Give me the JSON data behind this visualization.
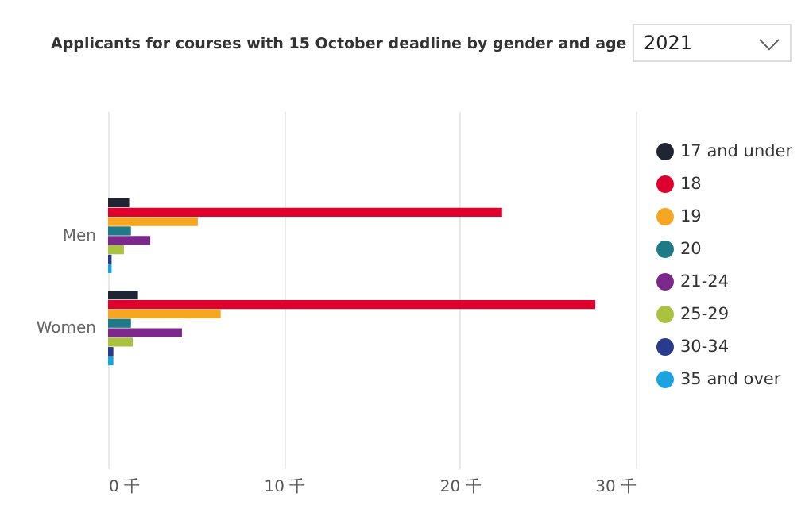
{
  "chart_data": {
    "type": "bar",
    "orientation": "horizontal",
    "title": "Applicants for courses with 15 October deadline by gender and age",
    "annotations": [
      "2021"
    ],
    "categories": [
      "Men",
      "Women"
    ],
    "series": [
      {
        "name": "17 and under",
        "color": "#1f2532",
        "values": [
          1.2,
          1.7
        ]
      },
      {
        "name": "18",
        "color": "#e0002d",
        "values": [
          22.4,
          27.7
        ]
      },
      {
        "name": "19",
        "color": "#f5a623",
        "values": [
          5.1,
          6.4
        ]
      },
      {
        "name": "20",
        "color": "#1e7a86",
        "values": [
          1.3,
          1.3
        ]
      },
      {
        "name": "21-24",
        "color": "#7b2a8c",
        "values": [
          2.4,
          4.2
        ]
      },
      {
        "name": "25-29",
        "color": "#a9c23f",
        "values": [
          0.9,
          1.4
        ]
      },
      {
        "name": "30-34",
        "color": "#2a3a8c",
        "values": [
          0.2,
          0.3
        ]
      },
      {
        "name": "35 and over",
        "color": "#1aa3e0",
        "values": [
          0.2,
          0.3
        ]
      }
    ],
    "xlim": [
      0,
      30
    ],
    "xticks": [
      {
        "value": 0,
        "label": "0 千"
      },
      {
        "value": 10,
        "label": "10 千"
      },
      {
        "value": 20,
        "label": "20 千"
      },
      {
        "value": 30,
        "label": "30 千"
      }
    ],
    "grid": true,
    "legend": "right"
  }
}
